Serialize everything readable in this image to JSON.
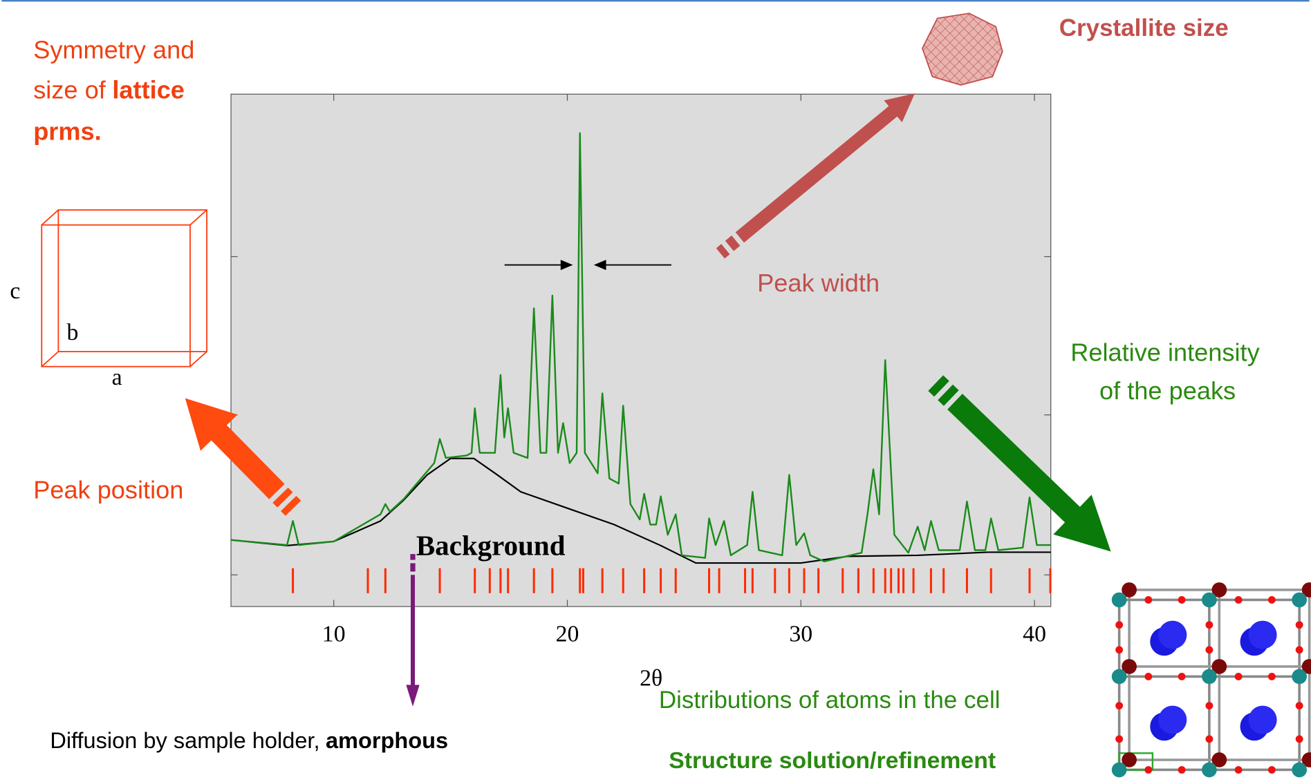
{
  "chart_data": {
    "type": "line",
    "xlim": [
      5.6,
      40.7
    ],
    "ylim": [
      0,
      100
    ],
    "xticks": [
      10,
      20,
      30,
      40
    ],
    "xlabel": "2θ",
    "series": [
      {
        "color": "#1a8a1a",
        "x": [
          5.6,
          8.0,
          8.25,
          8.5,
          10,
          12.0,
          12.21,
          12.4,
          13,
          14.3,
          14.54,
          14.8,
          15.7,
          15.9,
          16.04,
          16.25,
          16.9,
          17.14,
          17.3,
          17.46,
          17.7,
          18.3,
          18.57,
          18.85,
          19.1,
          19.36,
          19.6,
          19.82,
          20.1,
          20.4,
          20.54,
          20.75,
          21.3,
          21.5,
          21.8,
          22.2,
          22.39,
          22.7,
          23.1,
          23.29,
          23.55,
          23.8,
          24.0,
          24.3,
          24.64,
          24.9,
          25.9,
          26.07,
          26.35,
          26.71,
          27.0,
          27.7,
          27.93,
          28.2,
          29.2,
          29.5,
          29.8,
          30.14,
          30.4,
          31.0,
          32.6,
          32.85,
          33.1,
          33.35,
          33.61,
          34.0,
          34.6,
          35.0,
          35.3,
          35.57,
          35.9,
          36.8,
          37.11,
          37.45,
          37.9,
          38.14,
          38.45,
          39.5,
          39.79,
          40.1,
          40.7
        ],
        "values": [
          13,
          12,
          16.7,
          12,
          12.7,
          18,
          20,
          18.5,
          21,
          28,
          32.7,
          29,
          29.5,
          30,
          38.7,
          30,
          30,
          45.2,
          33,
          38.7,
          30,
          29,
          58.2,
          30,
          30,
          60.7,
          30,
          35.8,
          28,
          30,
          92.4,
          30,
          26,
          41.6,
          25,
          24,
          39.2,
          20,
          17,
          22,
          16,
          16,
          21.5,
          14,
          18,
          10,
          9.5,
          17.2,
          12,
          16.7,
          10,
          12,
          22.4,
          11,
          10,
          25.7,
          12,
          14.3,
          10,
          8.8,
          10.5,
          18,
          26.8,
          18,
          48.1,
          14,
          10.5,
          15.6,
          11,
          16.7,
          11,
          11,
          20.5,
          11,
          11,
          17.2,
          11,
          11.5,
          21.3,
          12,
          12
        ]
      },
      {
        "name": "Background",
        "color": "#000000",
        "x": [
          5.6,
          8,
          10,
          12,
          13,
          14,
          15,
          16,
          17,
          18,
          20,
          22,
          24,
          25.5,
          30,
          32,
          35,
          38,
          40.7
        ],
        "values": [
          13,
          11.9,
          12.7,
          16.7,
          20.8,
          25.7,
          28.9,
          28.9,
          25.7,
          22.4,
          19.2,
          16,
          11.9,
          8.5,
          8.5,
          9.8,
          10,
          10.6,
          10.6
        ]
      }
    ],
    "reflections": [
      8.25,
      11.46,
      12.21,
      14.54,
      16.04,
      16.68,
      17.14,
      17.46,
      18.57,
      19.36,
      20.54,
      20.68,
      21.5,
      22.39,
      23.29,
      24.0,
      24.64,
      26.07,
      26.5,
      27.61,
      27.93,
      28.89,
      29.5,
      30.14,
      30.75,
      31.79,
      32.46,
      33.11,
      33.61,
      33.86,
      34.18,
      34.39,
      34.82,
      35.57,
      36.11,
      37.11,
      38.14,
      39.79,
      40.68
    ],
    "reflection_color": "#ff2a00",
    "annotations": {
      "lattice_line1": "Symmetry and",
      "lattice_line2": "size of",
      "lattice_line2_bold": "lattice",
      "lattice_line3": "prms.",
      "axis_c": "c",
      "axis_b": "b",
      "axis_a": "a",
      "peak_position": "Peak position",
      "diffusion": "Diffusion by sample holder,",
      "diffusion_bold": "amorphous",
      "crystallite_size": "Crystallite size",
      "peak_width": "Peak width",
      "relative_intensity_1": "Relative intensity",
      "relative_intensity_2": "of the peaks",
      "distributions": "Distributions of atoms in the cell",
      "structure": "Structure solution/refinement"
    }
  }
}
